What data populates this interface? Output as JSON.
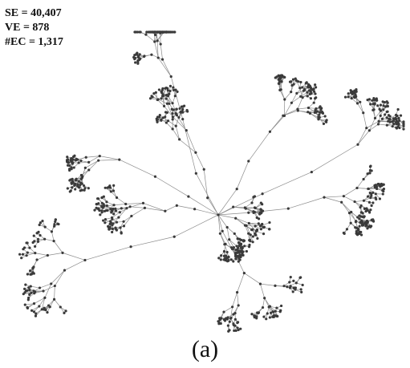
{
  "stats": {
    "se": "SE = 40,407",
    "ve": "VE = 878",
    "ec": "#EC = 1,317"
  },
  "panel_label": "(a)",
  "colors": {
    "edge": "#8c8c8c",
    "node": "#3a3a3a",
    "text": "#111111",
    "background": "#ffffff"
  }
}
